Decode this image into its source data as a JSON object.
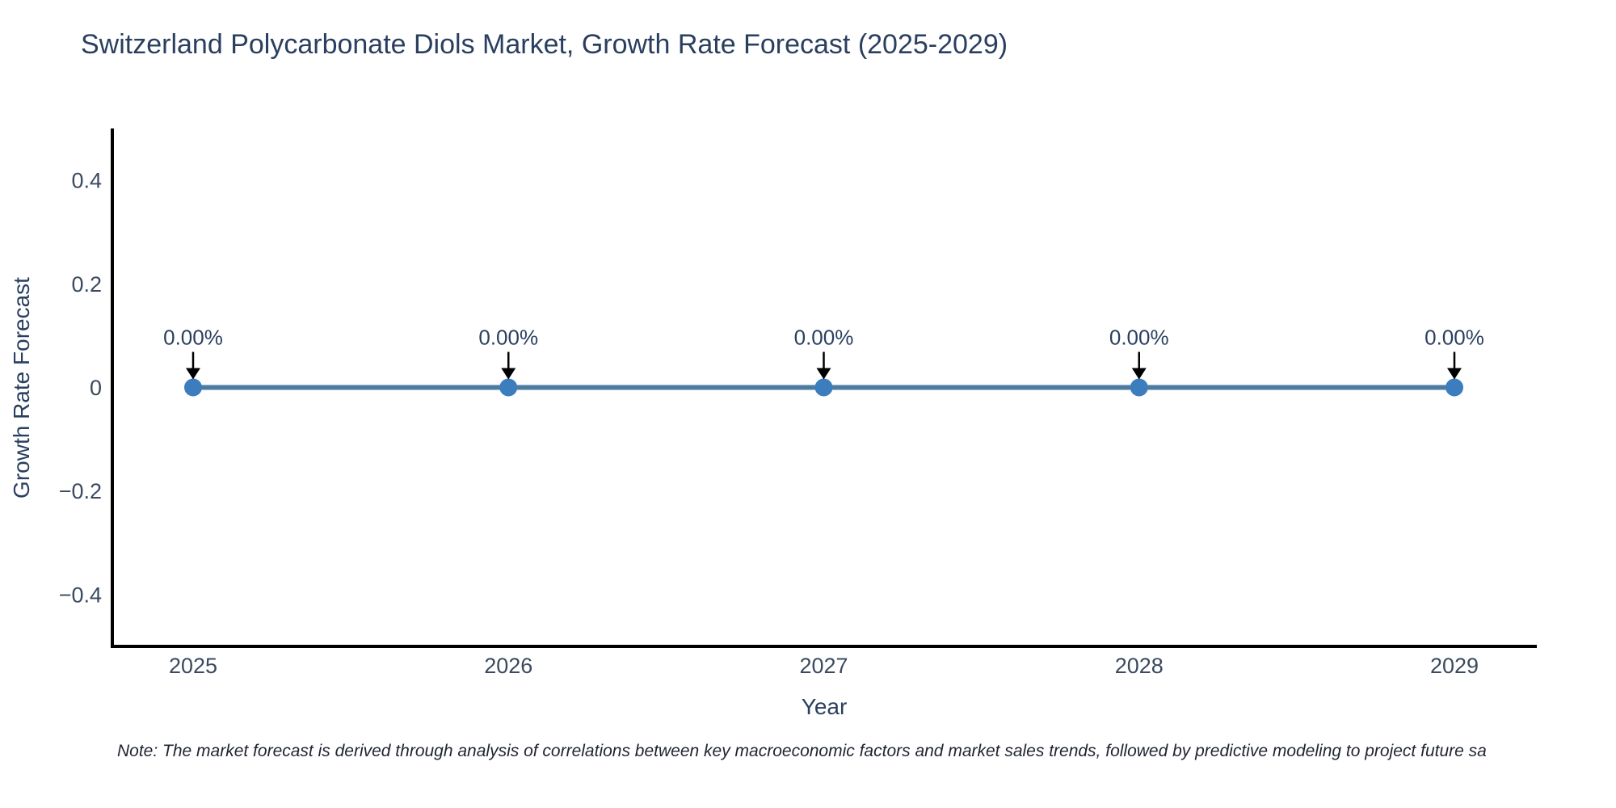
{
  "note": "Note: The market forecast is derived through analysis of correlations between key macroeconomic factors and market sales trends, followed by predictive modeling to project future sa",
  "chart_data": {
    "type": "line",
    "title": "Switzerland Polycarbonate Diols Market, Growth Rate Forecast (2025-2029)",
    "xlabel": "Year",
    "ylabel": "Growth Rate Forecast",
    "x": [
      "2025",
      "2026",
      "2027",
      "2028",
      "2029"
    ],
    "series": [
      {
        "name": "Growth Rate Forecast",
        "values": [
          0,
          0,
          0,
          0,
          0
        ]
      }
    ],
    "point_labels": [
      "0.00%",
      "0.00%",
      "0.00%",
      "0.00%",
      "0.00%"
    ],
    "yticks": [
      0.4,
      0.2,
      0,
      -0.2,
      -0.4
    ],
    "ytick_labels": [
      "0.4",
      "0.2",
      "0",
      "−0.2",
      "−0.4"
    ],
    "ylim": [
      -0.5,
      0.5
    ],
    "grid": false,
    "legend": "none",
    "colors": {
      "line": "#4d7ca1",
      "marker": "#3c7dbe",
      "axis": "#000000",
      "arrow": "#000000",
      "title_text": "#2a3f5f",
      "tick_text": "#3b4a5f"
    }
  }
}
